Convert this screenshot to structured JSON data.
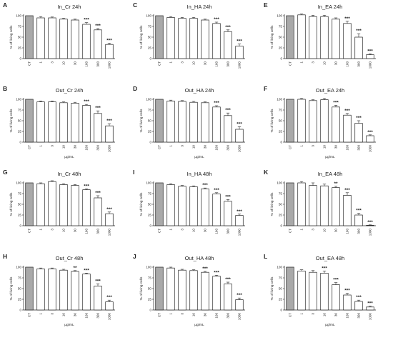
{
  "chart_data": [
    {
      "type": "bar",
      "panel": "A",
      "title": "In_Cr 24h",
      "ylabel": "% of living cells",
      "xlabel": "",
      "ylim": [
        0,
        100
      ],
      "yticks": [
        0,
        25,
        50,
        75,
        100
      ],
      "categories": [
        "CT",
        "1",
        "3",
        "10",
        "30",
        "100",
        "300",
        "1000"
      ],
      "values": [
        100,
        95,
        95,
        92,
        90,
        80,
        67,
        33
      ],
      "errors": [
        0,
        3,
        2,
        2,
        2,
        4,
        3,
        3
      ],
      "significance": [
        "",
        "",
        "",
        "",
        "",
        "***",
        "***",
        "***"
      ],
      "colors": [
        "#a9a9a9",
        "#ffffff"
      ]
    },
    {
      "type": "bar",
      "panel": "C",
      "title": "In_HA 24h",
      "ylabel": "% of living cells",
      "xlabel": "",
      "ylim": [
        0,
        100
      ],
      "yticks": [
        0,
        25,
        50,
        75,
        100
      ],
      "categories": [
        "CT",
        "1",
        "3",
        "10",
        "30",
        "100",
        "300",
        "1000"
      ],
      "values": [
        100,
        96,
        94,
        94,
        90,
        82,
        63,
        29
      ],
      "errors": [
        0,
        2,
        2,
        2,
        2,
        3,
        4,
        5
      ],
      "significance": [
        "",
        "",
        "",
        "",
        "",
        "***",
        "***",
        "***"
      ],
      "colors": [
        "#a9a9a9",
        "#ffffff"
      ]
    },
    {
      "type": "bar",
      "panel": "E",
      "title": "In_EA 24h",
      "ylabel": "% of living cells",
      "xlabel": "",
      "ylim": [
        0,
        100
      ],
      "yticks": [
        0,
        25,
        50,
        75,
        100
      ],
      "categories": [
        "CT",
        "1",
        "3",
        "10",
        "30",
        "100",
        "300",
        "1000"
      ],
      "values": [
        100,
        102,
        98,
        98,
        92,
        82,
        50,
        9
      ],
      "errors": [
        0,
        2,
        3,
        3,
        3,
        5,
        8,
        2
      ],
      "significance": [
        "",
        "",
        "",
        "",
        "",
        "***",
        "***",
        "***"
      ],
      "colors": [
        "#a9a9a9",
        "#ffffff"
      ]
    },
    {
      "type": "bar",
      "panel": "B",
      "title": "Out_Cr 24h",
      "ylabel": "% of living cells",
      "xlabel": "µg/mL",
      "ylim": [
        0,
        100
      ],
      "yticks": [
        0,
        25,
        50,
        75,
        100
      ],
      "categories": [
        "CT",
        "1",
        "3",
        "10",
        "30",
        "100",
        "300",
        "1000"
      ],
      "values": [
        100,
        94,
        94,
        92,
        91,
        86,
        67,
        38
      ],
      "errors": [
        0,
        2,
        2,
        2,
        2,
        2,
        6,
        5
      ],
      "significance": [
        "",
        "",
        "",
        "",
        "",
        "***",
        "***",
        "***"
      ],
      "colors": [
        "#a9a9a9",
        "#ffffff"
      ]
    },
    {
      "type": "bar",
      "panel": "D",
      "title": "Out_HA 24h",
      "ylabel": "% of living cells",
      "xlabel": "µg/mL",
      "ylim": [
        0,
        100
      ],
      "yticks": [
        0,
        25,
        50,
        75,
        100
      ],
      "categories": [
        "CT",
        "1",
        "3",
        "10",
        "30",
        "100",
        "300",
        "1000"
      ],
      "values": [
        100,
        96,
        95,
        93,
        92,
        82,
        62,
        30
      ],
      "errors": [
        0,
        2,
        2,
        2,
        2,
        3,
        6,
        6
      ],
      "significance": [
        "",
        "",
        "",
        "",
        "",
        "***",
        "***",
        "***"
      ],
      "colors": [
        "#a9a9a9",
        "#ffffff"
      ]
    },
    {
      "type": "bar",
      "panel": "F",
      "title": "Out_EA 24h",
      "ylabel": "% of living cells",
      "xlabel": "µg/mL",
      "ylim": [
        0,
        100
      ],
      "yticks": [
        0,
        25,
        50,
        75,
        100
      ],
      "categories": [
        "CT",
        "1",
        "3",
        "10",
        "30",
        "100",
        "300",
        "1000"
      ],
      "values": [
        100,
        100,
        97,
        99,
        82,
        63,
        44,
        15
      ],
      "errors": [
        0,
        2,
        2,
        3,
        4,
        4,
        6,
        2
      ],
      "significance": [
        "",
        "",
        "",
        "",
        "***",
        "***",
        "***",
        "***"
      ],
      "colors": [
        "#a9a9a9",
        "#ffffff"
      ]
    },
    {
      "type": "bar",
      "panel": "G",
      "title": "In_Cr 48h",
      "ylabel": "% of living cells",
      "xlabel": "",
      "ylim": [
        0,
        100
      ],
      "yticks": [
        0,
        25,
        50,
        75,
        100
      ],
      "categories": [
        "CT",
        "1",
        "3",
        "10",
        "30",
        "100",
        "300",
        "1000"
      ],
      "values": [
        100,
        98,
        103,
        96,
        94,
        84,
        65,
        28
      ],
      "errors": [
        0,
        2,
        2,
        2,
        2,
        2,
        5,
        4
      ],
      "significance": [
        "",
        "",
        "",
        "",
        "",
        "***",
        "***",
        "***"
      ],
      "colors": [
        "#a9a9a9",
        "#ffffff"
      ]
    },
    {
      "type": "bar",
      "panel": "I",
      "title": "In_HA 48h",
      "ylabel": "% of living cells",
      "xlabel": "",
      "ylim": [
        0,
        100
      ],
      "yticks": [
        0,
        25,
        50,
        75,
        100
      ],
      "categories": [
        "CT",
        "1",
        "3",
        "10",
        "30",
        "100",
        "300",
        "1000"
      ],
      "values": [
        100,
        96,
        92,
        91,
        86,
        74,
        57,
        24
      ],
      "errors": [
        0,
        2,
        2,
        2,
        2,
        3,
        4,
        3
      ],
      "significance": [
        "",
        "",
        "",
        "",
        "***",
        "***",
        "***",
        "***"
      ],
      "colors": [
        "#a9a9a9",
        "#ffffff"
      ]
    },
    {
      "type": "bar",
      "panel": "K",
      "title": "In_EA 48h",
      "ylabel": "% of living cells",
      "xlabel": "",
      "ylim": [
        0,
        100
      ],
      "yticks": [
        0,
        25,
        50,
        75,
        100
      ],
      "categories": [
        "CT",
        "1",
        "3",
        "10",
        "30",
        "100",
        "300",
        "1000"
      ],
      "values": [
        100,
        100,
        94,
        93,
        89,
        71,
        25,
        1
      ],
      "errors": [
        0,
        3,
        6,
        4,
        3,
        6,
        4,
        1
      ],
      "significance": [
        "",
        "",
        "",
        "",
        "**",
        "***",
        "***",
        "***"
      ],
      "colors": [
        "#a9a9a9",
        "#ffffff"
      ]
    },
    {
      "type": "bar",
      "panel": "H",
      "title": "Out_Cr 48h",
      "ylabel": "% of living cells",
      "xlabel": "µg/mL",
      "ylim": [
        0,
        100
      ],
      "yticks": [
        0,
        25,
        50,
        75,
        100
      ],
      "categories": [
        "CT",
        "1",
        "3",
        "10",
        "30",
        "100",
        "300",
        "1000"
      ],
      "values": [
        100,
        96,
        96,
        93,
        90,
        84,
        56,
        19
      ],
      "errors": [
        0,
        2,
        2,
        2,
        2,
        2,
        5,
        4
      ],
      "significance": [
        "",
        "",
        "",
        "",
        "**",
        "***",
        "***",
        "***"
      ],
      "colors": [
        "#a9a9a9",
        "#ffffff"
      ]
    },
    {
      "type": "bar",
      "panel": "J",
      "title": "Out_HA 48h",
      "ylabel": "% of living cells",
      "xlabel": "µg/mL",
      "ylim": [
        0,
        100
      ],
      "yticks": [
        0,
        25,
        50,
        75,
        100
      ],
      "categories": [
        "CT",
        "1",
        "3",
        "10",
        "30",
        "100",
        "300",
        "1000"
      ],
      "values": [
        100,
        98,
        93,
        92,
        88,
        79,
        61,
        24
      ],
      "errors": [
        0,
        2,
        2,
        2,
        2,
        2,
        4,
        4
      ],
      "significance": [
        "",
        "",
        "",
        "",
        "***",
        "***",
        "***",
        "***"
      ],
      "colors": [
        "#a9a9a9",
        "#ffffff"
      ]
    },
    {
      "type": "bar",
      "panel": "L",
      "title": "Out_EA 48h",
      "ylabel": "% of living cells",
      "xlabel": "µg/mL",
      "ylim": [
        0,
        100
      ],
      "yticks": [
        0,
        25,
        50,
        75,
        100
      ],
      "categories": [
        "CT",
        "1",
        "3",
        "10",
        "30",
        "100",
        "300",
        "1000"
      ],
      "values": [
        100,
        91,
        88,
        86,
        59,
        35,
        20,
        7
      ],
      "errors": [
        0,
        3,
        4,
        5,
        5,
        4,
        3,
        2
      ],
      "significance": [
        "",
        "",
        "",
        "***",
        "***",
        "***",
        "***",
        "***"
      ],
      "colors": [
        "#a9a9a9",
        "#ffffff"
      ]
    }
  ]
}
